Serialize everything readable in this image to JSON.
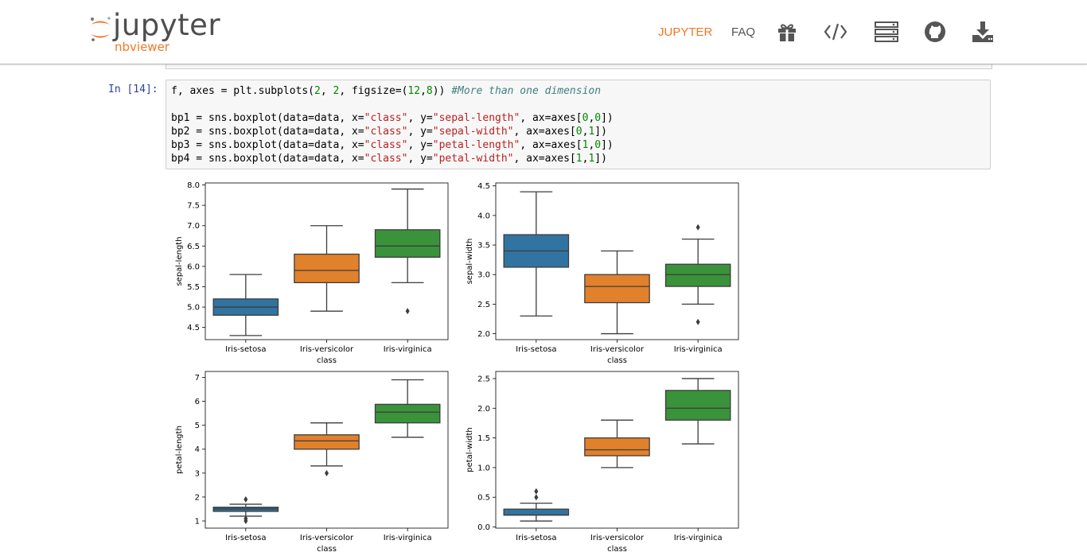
{
  "header": {
    "logo_word": "jupyter",
    "logo_sub": "nbviewer",
    "nav": {
      "jupyter": "JUPYTER",
      "faq": "FAQ"
    },
    "icons": [
      "gift-icon",
      "code-icon",
      "server-icon",
      "github-icon",
      "download-icon"
    ],
    "accent": "#f37726"
  },
  "cell": {
    "prompt": "In [14]:",
    "code": [
      [
        [
          "f, axes = plt.subplots(",
          ""
        ],
        [
          "2",
          "num"
        ],
        [
          ", ",
          ""
        ],
        [
          "2",
          "num"
        ],
        [
          ", figsize=(",
          ""
        ],
        [
          "12",
          "num"
        ],
        [
          ",",
          ""
        ],
        [
          "8",
          "num"
        ],
        [
          ")) ",
          ""
        ],
        [
          "#More than one dimension",
          "cm"
        ]
      ],
      [],
      [
        [
          "bp1 = sns.boxplot(data=data, x=",
          ""
        ],
        [
          "\"class\"",
          "str"
        ],
        [
          ", y=",
          ""
        ],
        [
          "\"sepal-length\"",
          "str"
        ],
        [
          ", ax=axes[",
          ""
        ],
        [
          "0",
          "num"
        ],
        [
          ",",
          ""
        ],
        [
          "0",
          "num"
        ],
        [
          "])",
          ""
        ]
      ],
      [
        [
          "bp2 = sns.boxplot(data=data, x=",
          ""
        ],
        [
          "\"class\"",
          "str"
        ],
        [
          ", y=",
          ""
        ],
        [
          "\"sepal-width\"",
          "str"
        ],
        [
          ", ax=axes[",
          ""
        ],
        [
          "0",
          "num"
        ],
        [
          ",",
          ""
        ],
        [
          "1",
          "num"
        ],
        [
          "])",
          ""
        ]
      ],
      [
        [
          "bp3 = sns.boxplot(data=data, x=",
          ""
        ],
        [
          "\"class\"",
          "str"
        ],
        [
          ", y=",
          ""
        ],
        [
          "\"petal-length\"",
          "str"
        ],
        [
          ", ax=axes[",
          ""
        ],
        [
          "1",
          "num"
        ],
        [
          ",",
          ""
        ],
        [
          "0",
          "num"
        ],
        [
          "])",
          ""
        ]
      ],
      [
        [
          "bp4 = sns.boxplot(data=data, x=",
          ""
        ],
        [
          "\"class\"",
          "str"
        ],
        [
          ", y=",
          ""
        ],
        [
          "\"petal-width\"",
          "str"
        ],
        [
          ", ax=axes[",
          ""
        ],
        [
          "1",
          "num"
        ],
        [
          ",",
          ""
        ],
        [
          "1",
          "num"
        ],
        [
          "])",
          ""
        ]
      ]
    ]
  },
  "chart_data": [
    {
      "type": "box",
      "xlabel": "class",
      "ylabel": "sepal-length",
      "categories": [
        "Iris-setosa",
        "Iris-versicolor",
        "Iris-virginica"
      ],
      "ylim": [
        4.2,
        8.05
      ],
      "yticks": [
        "4.5",
        "5.0",
        "5.5",
        "6.0",
        "6.5",
        "7.0",
        "7.5",
        "8.0"
      ],
      "boxes": [
        {
          "min": 4.3,
          "q1": 4.8,
          "median": 5.0,
          "q3": 5.2,
          "max": 5.8,
          "outliers": []
        },
        {
          "min": 4.9,
          "q1": 5.6,
          "median": 5.9,
          "q3": 6.3,
          "max": 7.0,
          "outliers": []
        },
        {
          "min": 5.6,
          "q1": 6.225,
          "median": 6.5,
          "q3": 6.9,
          "max": 7.9,
          "outliers": [
            4.9
          ]
        }
      ]
    },
    {
      "type": "box",
      "xlabel": "class",
      "ylabel": "sepal-width",
      "categories": [
        "Iris-setosa",
        "Iris-versicolor",
        "Iris-virginica"
      ],
      "ylim": [
        1.9,
        4.55
      ],
      "yticks": [
        "2.0",
        "2.5",
        "3.0",
        "3.5",
        "4.0",
        "4.5"
      ],
      "boxes": [
        {
          "min": 2.3,
          "q1": 3.125,
          "median": 3.4,
          "q3": 3.675,
          "max": 4.4,
          "outliers": []
        },
        {
          "min": 2.0,
          "q1": 2.525,
          "median": 2.8,
          "q3": 3.0,
          "max": 3.4,
          "outliers": []
        },
        {
          "min": 2.5,
          "q1": 2.8,
          "median": 3.0,
          "q3": 3.175,
          "max": 3.6,
          "outliers": [
            3.8,
            2.2
          ]
        }
      ]
    },
    {
      "type": "box",
      "xlabel": "class",
      "ylabel": "petal-length",
      "categories": [
        "Iris-setosa",
        "Iris-versicolor",
        "Iris-virginica"
      ],
      "ylim": [
        0.7,
        7.25
      ],
      "yticks": [
        "1",
        "2",
        "3",
        "4",
        "5",
        "6",
        "7"
      ],
      "boxes": [
        {
          "min": 1.2,
          "q1": 1.4,
          "median": 1.5,
          "q3": 1.575,
          "max": 1.7,
          "outliers": [
            1.9,
            1.1,
            1.0
          ]
        },
        {
          "min": 3.3,
          "q1": 4.0,
          "median": 4.35,
          "q3": 4.6,
          "max": 5.1,
          "outliers": [
            3.0
          ]
        },
        {
          "min": 4.5,
          "q1": 5.1,
          "median": 5.55,
          "q3": 5.875,
          "max": 6.9,
          "outliers": []
        }
      ]
    },
    {
      "type": "box",
      "xlabel": "class",
      "ylabel": "petal-width",
      "categories": [
        "Iris-setosa",
        "Iris-versicolor",
        "Iris-virginica"
      ],
      "ylim": [
        -0.02,
        2.62
      ],
      "yticks": [
        "0.0",
        "0.5",
        "1.0",
        "1.5",
        "2.0",
        "2.5"
      ],
      "boxes": [
        {
          "min": 0.1,
          "q1": 0.2,
          "median": 0.2,
          "q3": 0.3,
          "max": 0.4,
          "outliers": [
            0.5,
            0.6
          ]
        },
        {
          "min": 1.0,
          "q1": 1.2,
          "median": 1.3,
          "q3": 1.5,
          "max": 1.8,
          "outliers": []
        },
        {
          "min": 1.4,
          "q1": 1.8,
          "median": 2.0,
          "q3": 2.3,
          "max": 2.5,
          "outliers": []
        }
      ]
    }
  ],
  "colors": {
    "series": [
      "#3274a1",
      "#e1812c",
      "#3a923a"
    ],
    "line": "#3d3d3d"
  }
}
